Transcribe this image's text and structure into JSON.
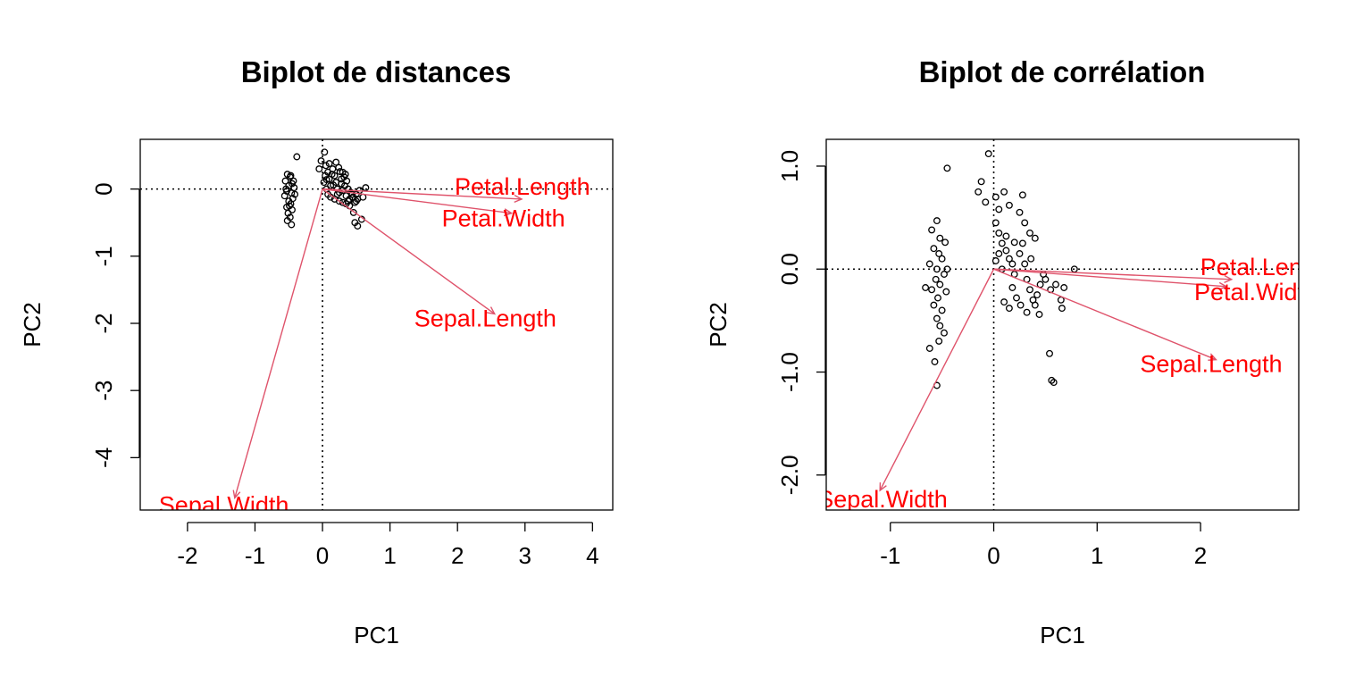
{
  "chart_data": [
    {
      "type": "scatter",
      "title": "Biplot de distances",
      "xlabel": "PC1",
      "ylabel": "PC2",
      "xlim": [
        -2.7,
        4.3
      ],
      "ylim": [
        -4.78,
        0.74
      ],
      "xticks": [
        "-2",
        "-1",
        "0",
        "1",
        "2",
        "3",
        "4"
      ],
      "yticks": [
        "-4",
        "-3",
        "-2",
        "-1",
        "0"
      ],
      "reference_lines": {
        "x": 0,
        "y": 0,
        "style": "dotted"
      },
      "points": [
        [
          -0.52,
          0.22
        ],
        [
          -0.48,
          0.18
        ],
        [
          -0.55,
          0.12
        ],
        [
          -0.45,
          0.08
        ],
        [
          -0.5,
          0.05
        ],
        [
          -0.42,
          0.02
        ],
        [
          -0.53,
          -0.03
        ],
        [
          -0.46,
          -0.06
        ],
        [
          -0.56,
          -0.1
        ],
        [
          -0.44,
          -0.14
        ],
        [
          -0.5,
          -0.18
        ],
        [
          -0.47,
          -0.22
        ],
        [
          -0.53,
          -0.27
        ],
        [
          -0.45,
          -0.31
        ],
        [
          -0.51,
          -0.36
        ],
        [
          -0.48,
          -0.42
        ],
        [
          -0.52,
          -0.47
        ],
        [
          -0.46,
          -0.53
        ],
        [
          -0.43,
          0.12
        ],
        [
          -0.49,
          -0.25
        ],
        [
          -0.41,
          -0.08
        ],
        [
          -0.54,
          0.0
        ],
        [
          -0.47,
          0.2
        ],
        [
          -0.38,
          0.48
        ],
        [
          -0.05,
          0.3
        ],
        [
          -0.02,
          0.42
        ],
        [
          0.03,
          0.55
        ],
        [
          0.05,
          0.35
        ],
        [
          0.08,
          0.25
        ],
        [
          0.1,
          0.15
        ],
        [
          0.02,
          0.1
        ],
        [
          0.12,
          0.05
        ],
        [
          0.06,
          0.0
        ],
        [
          0.15,
          0.3
        ],
        [
          0.18,
          0.2
        ],
        [
          0.2,
          0.1
        ],
        [
          0.22,
          0.0
        ],
        [
          0.25,
          -0.05
        ],
        [
          0.28,
          0.15
        ],
        [
          0.3,
          0.25
        ],
        [
          0.33,
          0.05
        ],
        [
          0.35,
          -0.1
        ],
        [
          0.38,
          0.0
        ],
        [
          0.4,
          -0.15
        ],
        [
          0.42,
          -0.05
        ],
        [
          0.45,
          -0.12
        ],
        [
          0.48,
          -0.2
        ],
        [
          0.5,
          -0.08
        ],
        [
          0.52,
          -0.15
        ],
        [
          0.55,
          -0.02
        ],
        [
          0.6,
          -0.12
        ],
        [
          0.64,
          0.02
        ],
        [
          0.46,
          -0.35
        ],
        [
          0.48,
          -0.5
        ],
        [
          0.52,
          -0.55
        ],
        [
          0.58,
          -0.45
        ],
        [
          0.25,
          -0.18
        ],
        [
          0.3,
          -0.2
        ],
        [
          0.35,
          -0.22
        ],
        [
          0.4,
          -0.25
        ],
        [
          0.12,
          -0.12
        ],
        [
          0.18,
          -0.15
        ],
        [
          0.08,
          -0.08
        ],
        [
          0.14,
          0.22
        ],
        [
          0.24,
          0.32
        ],
        [
          0.28,
          0.08
        ],
        [
          0.32,
          0.18
        ],
        [
          0.36,
          0.12
        ],
        [
          0.1,
          0.38
        ],
        [
          0.2,
          0.4
        ],
        [
          0.26,
          0.26
        ],
        [
          0.16,
          0.06
        ],
        [
          0.04,
          0.2
        ],
        [
          0.06,
          0.14
        ],
        [
          0.22,
          -0.08
        ],
        [
          0.3,
          -0.02
        ],
        [
          0.38,
          -0.18
        ],
        [
          0.44,
          -0.08
        ],
        [
          0.5,
          -0.18
        ],
        [
          0.34,
          0.22
        ]
      ],
      "arrows": [
        {
          "name": "Petal.Length",
          "x": 2.95,
          "y": -0.15
        },
        {
          "name": "Petal.Width",
          "x": 2.8,
          "y": -0.36
        },
        {
          "name": "Sepal.Length",
          "x": 2.55,
          "y": -1.86
        },
        {
          "name": "Sepal.Width",
          "x": -1.3,
          "y": -4.6
        }
      ]
    },
    {
      "type": "scatter",
      "title": "Biplot de corrélation",
      "xlabel": "PC1",
      "ylabel": "PC2",
      "xlim": [
        -1.62,
        2.95
      ],
      "ylim": [
        -2.34,
        1.26
      ],
      "xticks": [
        "-1",
        "0",
        "1",
        "2"
      ],
      "yticks": [
        "-2.0",
        "-1.0",
        "0.0",
        "1.0"
      ],
      "reference_lines": {
        "x": 0,
        "y": 0,
        "style": "dotted"
      },
      "points": [
        [
          -0.55,
          0.47
        ],
        [
          -0.6,
          0.38
        ],
        [
          -0.52,
          0.3
        ],
        [
          -0.47,
          0.26
        ],
        [
          -0.58,
          0.2
        ],
        [
          -0.53,
          0.15
        ],
        [
          -0.5,
          0.1
        ],
        [
          -0.62,
          0.05
        ],
        [
          -0.55,
          0.0
        ],
        [
          -0.48,
          -0.05
        ],
        [
          -0.56,
          -0.1
        ],
        [
          -0.52,
          -0.15
        ],
        [
          -0.6,
          -0.2
        ],
        [
          -0.46,
          -0.22
        ],
        [
          -0.54,
          -0.28
        ],
        [
          -0.58,
          -0.35
        ],
        [
          -0.5,
          -0.4
        ],
        [
          -0.55,
          -0.48
        ],
        [
          -0.52,
          -0.55
        ],
        [
          -0.48,
          -0.62
        ],
        [
          -0.53,
          -0.7
        ],
        [
          -0.62,
          -0.77
        ],
        [
          -0.57,
          -0.9
        ],
        [
          -0.55,
          -1.13
        ],
        [
          -0.45,
          0.98
        ],
        [
          -0.66,
          -0.18
        ],
        [
          -0.45,
          0.0
        ],
        [
          -0.05,
          1.12
        ],
        [
          -0.12,
          0.85
        ],
        [
          -0.15,
          0.75
        ],
        [
          -0.08,
          0.65
        ],
        [
          0.02,
          0.7
        ],
        [
          0.05,
          0.58
        ],
        [
          0.1,
          0.75
        ],
        [
          0.15,
          0.62
        ],
        [
          0.25,
          0.55
        ],
        [
          0.28,
          0.72
        ],
        [
          0.3,
          0.45
        ],
        [
          0.35,
          0.35
        ],
        [
          0.4,
          0.3
        ],
        [
          0.02,
          0.45
        ],
        [
          0.05,
          0.35
        ],
        [
          0.08,
          0.25
        ],
        [
          0.12,
          0.18
        ],
        [
          0.15,
          0.1
        ],
        [
          0.02,
          0.08
        ],
        [
          0.08,
          0.0
        ],
        [
          0.18,
          0.05
        ],
        [
          0.2,
          -0.05
        ],
        [
          0.25,
          0.15
        ],
        [
          0.28,
          0.25
        ],
        [
          0.3,
          0.05
        ],
        [
          0.32,
          -0.1
        ],
        [
          0.35,
          -0.2
        ],
        [
          0.38,
          -0.3
        ],
        [
          0.4,
          -0.35
        ],
        [
          0.42,
          -0.25
        ],
        [
          0.45,
          -0.15
        ],
        [
          0.48,
          -0.05
        ],
        [
          0.5,
          -0.1
        ],
        [
          0.55,
          -0.2
        ],
        [
          0.6,
          -0.15
        ],
        [
          0.65,
          -0.3
        ],
        [
          0.68,
          -0.18
        ],
        [
          0.78,
          0.0
        ],
        [
          0.54,
          -0.82
        ],
        [
          0.56,
          -1.08
        ],
        [
          0.58,
          -1.1
        ],
        [
          0.22,
          -0.28
        ],
        [
          0.26,
          -0.35
        ],
        [
          0.15,
          -0.38
        ],
        [
          0.1,
          -0.32
        ],
        [
          0.32,
          -0.42
        ],
        [
          0.44,
          -0.44
        ],
        [
          0.66,
          -0.38
        ],
        [
          0.36,
          0.1
        ],
        [
          0.2,
          0.26
        ],
        [
          0.12,
          0.32
        ],
        [
          0.05,
          0.15
        ],
        [
          0.18,
          -0.18
        ]
      ],
      "arrows": [
        {
          "name": "Petal.Length",
          "x": 2.3,
          "y": -0.1
        },
        {
          "name": "Petal.Width",
          "x": 2.25,
          "y": -0.17
        },
        {
          "name": "Sepal.Length",
          "x": 2.15,
          "y": -0.88
        },
        {
          "name": "Sepal.Width",
          "x": -1.1,
          "y": -2.15
        }
      ]
    }
  ],
  "colors": {
    "arrow": "#DF536B",
    "label": "#FF0000",
    "points": "#000000",
    "axes": "#000000"
  }
}
